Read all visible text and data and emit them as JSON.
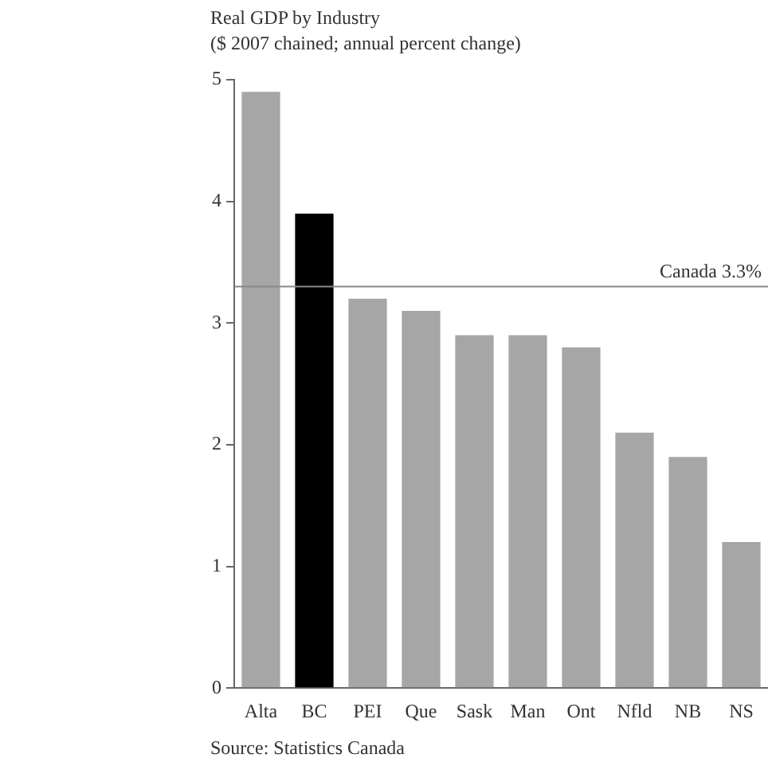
{
  "chart_data": {
    "type": "bar",
    "title": "Real GDP by Industry",
    "subtitle": "($ 2007 chained; annual percent change)",
    "categories": [
      "Alta",
      "BC",
      "PEI",
      "Que",
      "Sask",
      "Man",
      "Ont",
      "Nfld",
      "NB",
      "NS"
    ],
    "values": [
      4.9,
      3.9,
      3.2,
      3.1,
      2.9,
      2.9,
      2.8,
      2.1,
      1.9,
      1.2
    ],
    "colors": [
      "#a6a6a6",
      "#000000",
      "#a6a6a6",
      "#a6a6a6",
      "#a6a6a6",
      "#a6a6a6",
      "#a6a6a6",
      "#a6a6a6",
      "#a6a6a6",
      "#a6a6a6"
    ],
    "ylim": [
      0,
      5
    ],
    "yticks": [
      0,
      1,
      2,
      3,
      4,
      5
    ],
    "grid": false,
    "legend": false,
    "ref_lines": [
      {
        "axis": "y",
        "value": 3.3,
        "label": "Canada 3.3%",
        "color": "#888888"
      }
    ],
    "annotations": [
      "Source: Statistics Canada"
    ]
  }
}
